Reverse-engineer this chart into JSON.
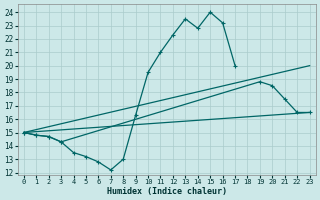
{
  "bg_color": "#cce8e8",
  "line_color": "#006666",
  "grid_color": "#aacccc",
  "xlabel": "Humidex (Indice chaleur)",
  "xlim": [
    -0.5,
    23.5
  ],
  "ylim": [
    11.8,
    24.6
  ],
  "yticks": [
    12,
    13,
    14,
    15,
    16,
    17,
    18,
    19,
    20,
    21,
    22,
    23,
    24
  ],
  "xticks": [
    0,
    1,
    2,
    3,
    4,
    5,
    6,
    7,
    8,
    9,
    10,
    11,
    12,
    13,
    14,
    15,
    16,
    17,
    18,
    19,
    20,
    21,
    22,
    23
  ],
  "line1_x": [
    0,
    1,
    2,
    3,
    4,
    5,
    6,
    7,
    8,
    9,
    10,
    11,
    12,
    13,
    14,
    15,
    16,
    17
  ],
  "line1_y": [
    15.0,
    14.8,
    14.7,
    14.3,
    13.5,
    13.2,
    12.8,
    12.2,
    13.0,
    16.3,
    19.5,
    21.0,
    22.3,
    23.5,
    22.8,
    24.0,
    23.2,
    20.0
  ],
  "line2_x": [
    0,
    1,
    2,
    3,
    19,
    20,
    21,
    22,
    23
  ],
  "line2_y": [
    15.0,
    14.8,
    14.7,
    14.3,
    18.8,
    18.5,
    17.5,
    16.5,
    16.5
  ],
  "line3_x": [
    0,
    23
  ],
  "line3_y": [
    15.0,
    20.0
  ],
  "line4_x": [
    0,
    23
  ],
  "line4_y": [
    15.0,
    16.5
  ]
}
